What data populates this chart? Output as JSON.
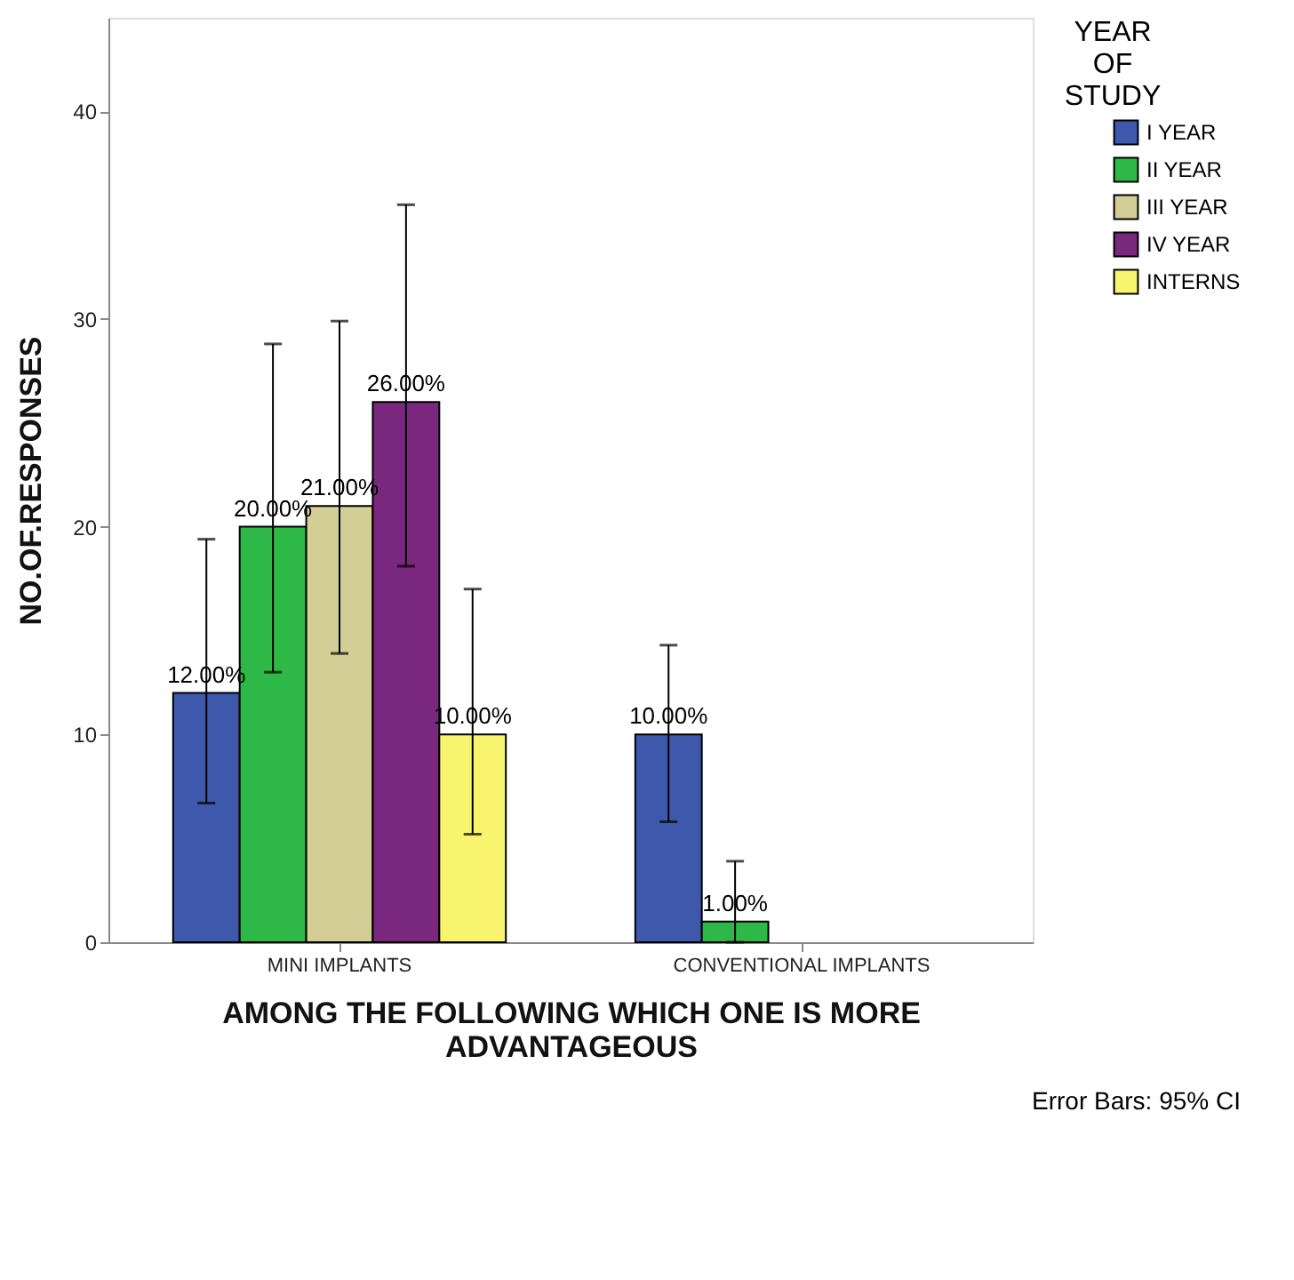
{
  "chart_data": {
    "type": "bar",
    "xlabel": "AMONG THE FOLLOWING WHICH ONE IS MORE ADVANTAGEOUS",
    "ylabel": "NO.OF.RESPONSES",
    "legend_title": "YEAR OF STUDY",
    "annotations": [
      "Error Bars: 95% CI"
    ],
    "categories": [
      "MINI IMPLANTS",
      "CONVENTIONAL IMPLANTS"
    ],
    "ylim": [
      0,
      44.5
    ],
    "yticks": [
      0,
      10,
      20,
      30,
      40
    ],
    "grid": false,
    "legend": "top right",
    "series": [
      {
        "name": "I YEAR",
        "color": "#3e58ac",
        "values": [
          12,
          10
        ],
        "errors": [
          [
            6.7,
            19.4
          ],
          [
            5.8,
            14.3
          ]
        ],
        "value_labels": [
          "12.00%",
          "10.00%"
        ]
      },
      {
        "name": "II YEAR",
        "color": "#2eb848",
        "values": [
          20,
          1
        ],
        "errors": [
          [
            13.0,
            28.8
          ],
          [
            0,
            3.9
          ]
        ],
        "value_labels": [
          "20.00%",
          "1.00%"
        ]
      },
      {
        "name": "III YEAR",
        "color": "#d2ce96",
        "values": [
          21,
          null
        ],
        "errors": [
          [
            13.9,
            29.9
          ],
          null
        ],
        "value_labels": [
          "21.00%",
          null
        ]
      },
      {
        "name": "IV YEAR",
        "color": "#7a287e",
        "values": [
          26,
          null
        ],
        "errors": [
          [
            18.1,
            35.5
          ],
          null
        ],
        "value_labels": [
          "26.00%",
          null
        ]
      },
      {
        "name": "INTERNS",
        "color": "#f8f46e",
        "values": [
          10,
          null
        ],
        "errors": [
          [
            5.2,
            17.0
          ],
          null
        ],
        "value_labels": [
          "10.00%",
          null
        ]
      }
    ]
  }
}
